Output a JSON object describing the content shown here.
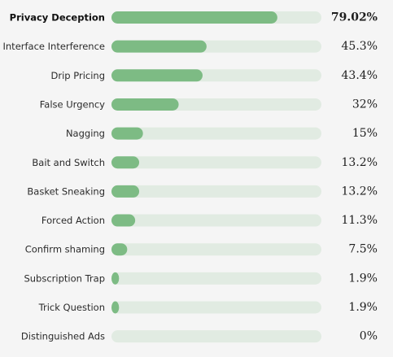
{
  "chart_data": {
    "type": "bar",
    "orientation": "horizontal",
    "xlim": [
      0,
      100
    ],
    "grid": false,
    "legend": "none",
    "colors": {
      "bar": "#7dbb84",
      "track": "#e1ebe2"
    },
    "highlight_index": 0,
    "categories": [
      "Privacy Deception",
      "Interface Interference",
      "Drip Pricing",
      "False Urgency",
      "Nagging",
      "Bait and Switch",
      "Basket Sneaking",
      "Forced Action",
      "Confirm shaming",
      "Subscription Trap",
      "Trick Question",
      "Distinguished Ads"
    ],
    "values": [
      79.02,
      45.3,
      43.4,
      32,
      15,
      13.2,
      13.2,
      11.3,
      7.5,
      1.9,
      1.9,
      0
    ],
    "value_labels": [
      "79.02%",
      "45.3%",
      "43.4%",
      "32%",
      "15%",
      "13.2%",
      "13.2%",
      "11.3%",
      "7.5%",
      "1.9%",
      "1.9%",
      "0%"
    ]
  }
}
